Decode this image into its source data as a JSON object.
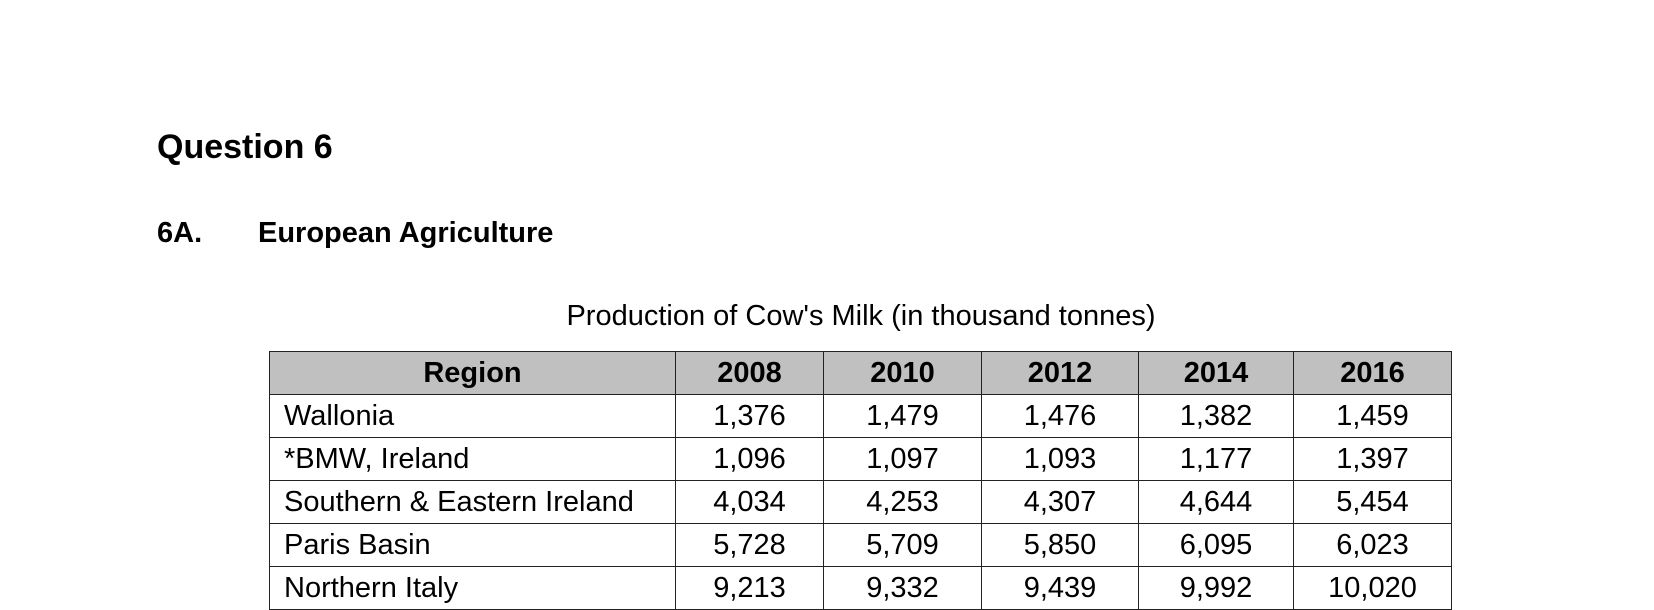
{
  "question": {
    "title": "Question 6"
  },
  "section": {
    "number": "6A.",
    "title": "European Agriculture"
  },
  "table": {
    "caption": "Production of Cow's Milk (in thousand tonnes)",
    "headers": [
      "Region",
      "2008",
      "2010",
      "2012",
      "2014",
      "2016"
    ],
    "rows": [
      {
        "region": "Wallonia",
        "values": [
          "1,376",
          "1,479",
          "1,476",
          "1,382",
          "1,459"
        ]
      },
      {
        "region": "*BMW, Ireland",
        "values": [
          "1,096",
          "1,097",
          "1,093",
          "1,177",
          "1,397"
        ]
      },
      {
        "region": "Southern & Eastern Ireland",
        "values": [
          "4,034",
          "4,253",
          "4,307",
          "4,644",
          "5,454"
        ]
      },
      {
        "region": "Paris Basin",
        "values": [
          "5,728",
          "5,709",
          "5,850",
          "6,095",
          "6,023"
        ]
      },
      {
        "region": "Northern Italy",
        "values": [
          "9,213",
          "9,332",
          "9,439",
          "9,992",
          "10,020"
        ]
      }
    ]
  }
}
